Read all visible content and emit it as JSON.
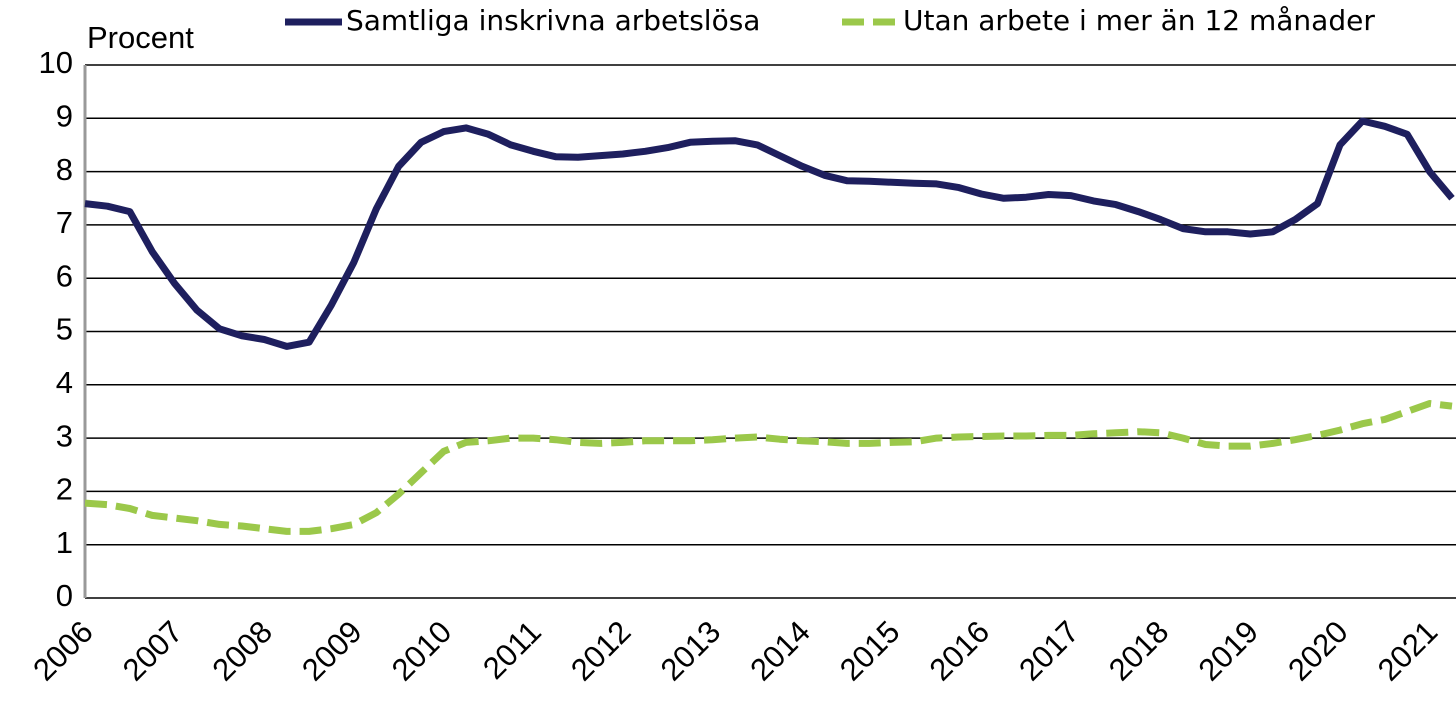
{
  "chart_data": {
    "type": "line",
    "y_label": "Procent",
    "categories": [
      "2006",
      null,
      null,
      null,
      "2007",
      null,
      null,
      null,
      "2008",
      null,
      null,
      null,
      "2009",
      null,
      null,
      null,
      "2010",
      null,
      null,
      null,
      "2011",
      null,
      null,
      null,
      "2012",
      null,
      null,
      null,
      "2013",
      null,
      null,
      null,
      "2014",
      null,
      null,
      null,
      "2015",
      null,
      null,
      null,
      "2016",
      null,
      null,
      null,
      "2017",
      null,
      null,
      null,
      "2018",
      null,
      null,
      null,
      "2019",
      null,
      null,
      null,
      "2020",
      null,
      null,
      null,
      "2021",
      null
    ],
    "series": [
      {
        "name": "Samtliga inskrivna arbetslösa",
        "color": "#1e1f5e",
        "dash": false,
        "values": [
          7.4,
          7.35,
          7.25,
          6.5,
          5.9,
          5.4,
          5.05,
          4.92,
          4.85,
          4.72,
          4.8,
          5.5,
          6.3,
          7.3,
          8.1,
          8.55,
          8.75,
          8.82,
          8.7,
          8.5,
          8.38,
          8.28,
          8.27,
          8.3,
          8.33,
          8.38,
          8.45,
          8.55,
          8.57,
          8.58,
          8.5,
          8.3,
          8.1,
          7.93,
          7.83,
          7.82,
          7.8,
          7.78,
          7.77,
          7.7,
          7.58,
          7.5,
          7.52,
          7.57,
          7.55,
          7.45,
          7.38,
          7.25,
          7.1,
          6.93,
          6.87,
          6.87,
          6.83,
          6.87,
          7.1,
          7.4,
          8.5,
          8.95,
          8.85,
          8.7,
          8.0,
          7.5
        ]
      },
      {
        "name": "Utan arbete i mer än 12 månader",
        "color": "#9bc84a",
        "dash": true,
        "values": [
          1.78,
          1.75,
          1.68,
          1.55,
          1.5,
          1.45,
          1.38,
          1.35,
          1.3,
          1.25,
          1.25,
          1.3,
          1.38,
          1.6,
          1.95,
          2.35,
          2.75,
          2.92,
          2.95,
          3.0,
          3.0,
          2.97,
          2.92,
          2.9,
          2.92,
          2.95,
          2.95,
          2.95,
          2.97,
          3.0,
          3.02,
          2.98,
          2.95,
          2.93,
          2.9,
          2.9,
          2.92,
          2.93,
          3.0,
          3.02,
          3.03,
          3.04,
          3.04,
          3.05,
          3.05,
          3.08,
          3.1,
          3.12,
          3.1,
          3.0,
          2.88,
          2.85,
          2.85,
          2.9,
          2.97,
          3.05,
          3.15,
          3.27,
          3.35,
          3.5,
          3.65,
          3.6
        ]
      }
    ],
    "ylim": [
      0,
      10
    ],
    "yticks": [
      0,
      1,
      2,
      3,
      4,
      5,
      6,
      7,
      8,
      9,
      10
    ],
    "grid": true,
    "legend": "top"
  }
}
